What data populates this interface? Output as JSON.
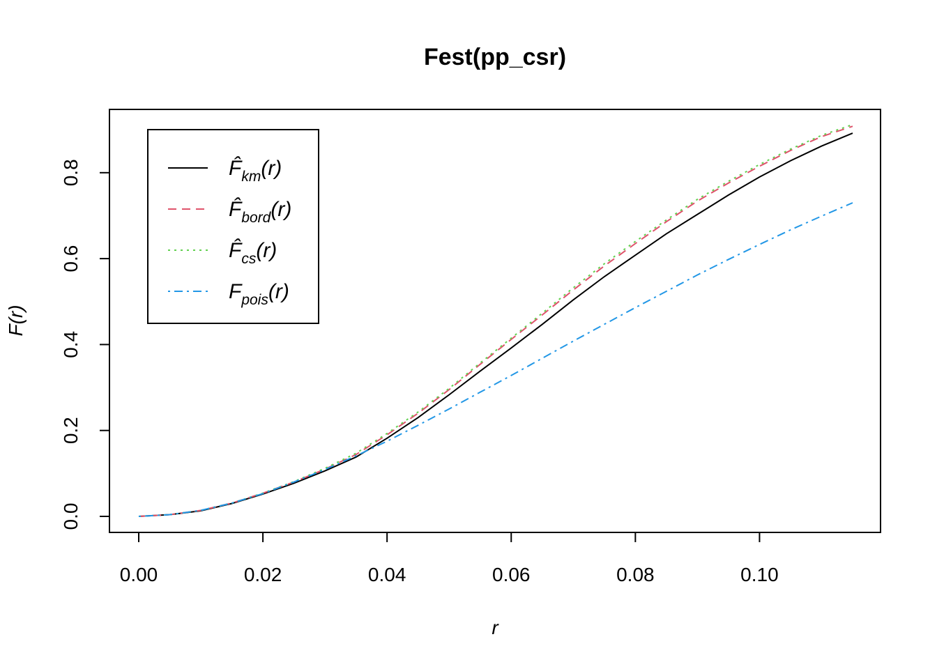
{
  "chart_data": {
    "type": "line",
    "title": "Fest(pp_csr)",
    "xlabel": "r",
    "ylabel": "F(r)",
    "xlim": [
      0,
      0.115
    ],
    "ylim": [
      0,
      0.91
    ],
    "xticks": [
      "0.00",
      "0.02",
      "0.04",
      "0.06",
      "0.08",
      "0.10"
    ],
    "yticks": [
      "0.0",
      "0.2",
      "0.4",
      "0.6",
      "0.8"
    ],
    "legend_position": "top-left",
    "grid": false,
    "x": [
      0,
      0.005,
      0.01,
      0.015,
      0.02,
      0.025,
      0.03,
      0.035,
      0.04,
      0.045,
      0.05,
      0.055,
      0.06,
      0.065,
      0.07,
      0.075,
      0.08,
      0.085,
      0.09,
      0.095,
      0.1,
      0.105,
      0.11,
      0.115
    ],
    "series": [
      {
        "name": "km",
        "legend_main": "F̂",
        "legend_sub": "km",
        "legend_tail": "(r)",
        "color": "#000000",
        "dash": "solid",
        "values": [
          0,
          0.004,
          0.013,
          0.03,
          0.052,
          0.077,
          0.106,
          0.138,
          0.182,
          0.23,
          0.283,
          0.338,
          0.392,
          0.447,
          0.504,
          0.558,
          0.608,
          0.658,
          0.703,
          0.748,
          0.79,
          0.828,
          0.862,
          0.892
        ]
      },
      {
        "name": "bord",
        "legend_main": "F̂",
        "legend_sub": "bord",
        "legend_tail": "(r)",
        "color": "#DF536B",
        "dash": "dashed",
        "values": [
          0,
          0.004,
          0.014,
          0.031,
          0.054,
          0.08,
          0.11,
          0.144,
          0.19,
          0.24,
          0.295,
          0.354,
          0.412,
          0.469,
          0.527,
          0.583,
          0.635,
          0.686,
          0.734,
          0.776,
          0.815,
          0.852,
          0.884,
          0.908
        ]
      },
      {
        "name": "cs",
        "legend_main": "F̂",
        "legend_sub": "cs",
        "legend_tail": "(r)",
        "color": "#61D04F",
        "dash": "dotted",
        "values": [
          0,
          0.004,
          0.014,
          0.031,
          0.054,
          0.081,
          0.112,
          0.147,
          0.193,
          0.243,
          0.298,
          0.357,
          0.415,
          0.473,
          0.532,
          0.588,
          0.64,
          0.69,
          0.738,
          0.78,
          0.819,
          0.855,
          0.887,
          0.912
        ]
      },
      {
        "name": "pois",
        "legend_main": "F",
        "legend_sub": "pois",
        "legend_tail": "(r)",
        "color": "#2297E6",
        "dash": "dotdash",
        "values": [
          0,
          0.004,
          0.014,
          0.031,
          0.053,
          0.08,
          0.109,
          0.141,
          0.175,
          0.212,
          0.25,
          0.289,
          0.328,
          0.368,
          0.408,
          0.447,
          0.486,
          0.524,
          0.562,
          0.598,
          0.633,
          0.667,
          0.699,
          0.73
        ]
      }
    ]
  }
}
